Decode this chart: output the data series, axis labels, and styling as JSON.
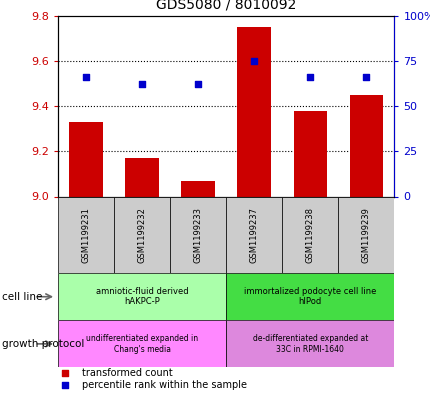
{
  "title": "GDS5080 / 8010092",
  "samples": [
    "GSM1199231",
    "GSM1199232",
    "GSM1199233",
    "GSM1199237",
    "GSM1199238",
    "GSM1199239"
  ],
  "transformed_counts": [
    9.33,
    9.17,
    9.07,
    9.75,
    9.38,
    9.45
  ],
  "percentile_ranks": [
    66,
    62,
    62,
    75,
    66,
    66
  ],
  "ylim_left": [
    9.0,
    9.8
  ],
  "ylim_right": [
    0,
    100
  ],
  "yticks_left": [
    9.0,
    9.2,
    9.4,
    9.6,
    9.8
  ],
  "yticks_right": [
    0,
    25,
    50,
    75,
    100
  ],
  "ytick_right_labels": [
    "0",
    "25",
    "50",
    "75",
    "100%"
  ],
  "bar_color": "#cc0000",
  "dot_color": "#0000cc",
  "cell_line_groups": [
    {
      "label": "amniotic-fluid derived\nhAKPC-P",
      "start": 0,
      "end": 3,
      "color": "#aaffaa"
    },
    {
      "label": "immortalized podocyte cell line\nhIPod",
      "start": 3,
      "end": 6,
      "color": "#44dd44"
    }
  ],
  "growth_protocol_groups": [
    {
      "label": "undifferentiated expanded in\nChang's media",
      "start": 0,
      "end": 3,
      "color": "#ff88ff"
    },
    {
      "label": "de-differentiated expanded at\n33C in RPMI-1640",
      "start": 3,
      "end": 6,
      "color": "#dd88dd"
    }
  ],
  "cell_line_label": "cell line",
  "growth_protocol_label": "growth protocol",
  "sample_bg_color": "#cccccc",
  "legend_items": [
    {
      "label": "transformed count",
      "color": "#cc0000",
      "marker": "s"
    },
    {
      "label": "percentile rank within the sample",
      "color": "#0000cc",
      "marker": "s"
    }
  ]
}
